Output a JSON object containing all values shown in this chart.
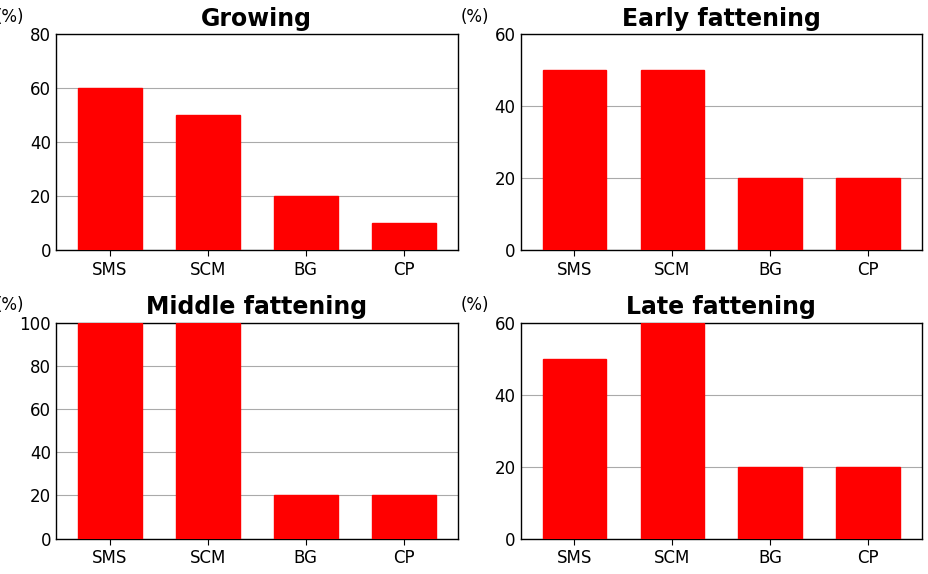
{
  "subplots": [
    {
      "title": "Growing",
      "categories": [
        "SMS",
        "SCM",
        "BG",
        "CP"
      ],
      "values": [
        60,
        50,
        20,
        10
      ],
      "ylim": [
        0,
        80
      ],
      "yticks": [
        0,
        20,
        40,
        60,
        80
      ]
    },
    {
      "title": "Early fattening",
      "categories": [
        "SMS",
        "SCM",
        "BG",
        "CP"
      ],
      "values": [
        50,
        50,
        20,
        20
      ],
      "ylim": [
        0,
        60
      ],
      "yticks": [
        0,
        20,
        40,
        60
      ]
    },
    {
      "title": "Middle fattening",
      "categories": [
        "SMS",
        "SCM",
        "BG",
        "CP"
      ],
      "values": [
        100,
        100,
        20,
        20
      ],
      "ylim": [
        0,
        100
      ],
      "yticks": [
        0,
        20,
        40,
        60,
        80,
        100
      ]
    },
    {
      "title": "Late fattening",
      "categories": [
        "SMS",
        "SCM",
        "BG",
        "CP"
      ],
      "values": [
        50,
        60,
        20,
        20
      ],
      "ylim": [
        0,
        60
      ],
      "yticks": [
        0,
        20,
        40,
        60
      ]
    }
  ],
  "bar_color": "#FF0000",
  "bar_width": 0.65,
  "ylabel": "(%)",
  "title_fontsize": 17,
  "tick_fontsize": 12,
  "ylabel_fontsize": 12,
  "grid_color": "#aaaaaa",
  "background_color": "#ffffff",
  "border_color": "#000000"
}
